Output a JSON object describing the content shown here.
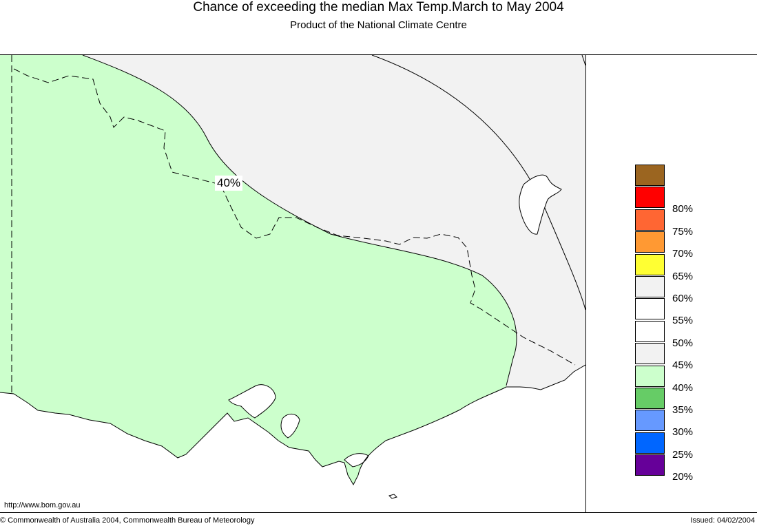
{
  "header": {
    "title": "Chance of exceeding the median Max Temp.March to May 2004",
    "subtitle": "Product of the National Climate Centre"
  },
  "map": {
    "contour_label": "40%",
    "url": "http://www.bom.gov.au"
  },
  "legend": {
    "items": [
      {
        "label": "",
        "color": "#9b6520"
      },
      {
        "label": "80%",
        "color": "#ff0000"
      },
      {
        "label": "75%",
        "color": "#ff6633"
      },
      {
        "label": "70%",
        "color": "#ff9933"
      },
      {
        "label": "65%",
        "color": "#ffff33"
      },
      {
        "label": "60%",
        "color": "#f2f2f2"
      },
      {
        "label": "55%",
        "color": "#ffffff"
      },
      {
        "label": "50%",
        "color": "#ffffff"
      },
      {
        "label": "45%",
        "color": "#f2f2f2"
      },
      {
        "label": "40%",
        "color": "#ccffcc"
      },
      {
        "label": "35%",
        "color": "#66cc66"
      },
      {
        "label": "30%",
        "color": "#6699ff"
      },
      {
        "label": "25%",
        "color": "#0066ff"
      },
      {
        "label": "20%",
        "color": "#660099"
      }
    ]
  },
  "footer": {
    "copyright": "© Commonwealth of Australia 2004, Commonwealth Bureau of Meteorology",
    "issued": "Issued: 04/02/2004"
  }
}
